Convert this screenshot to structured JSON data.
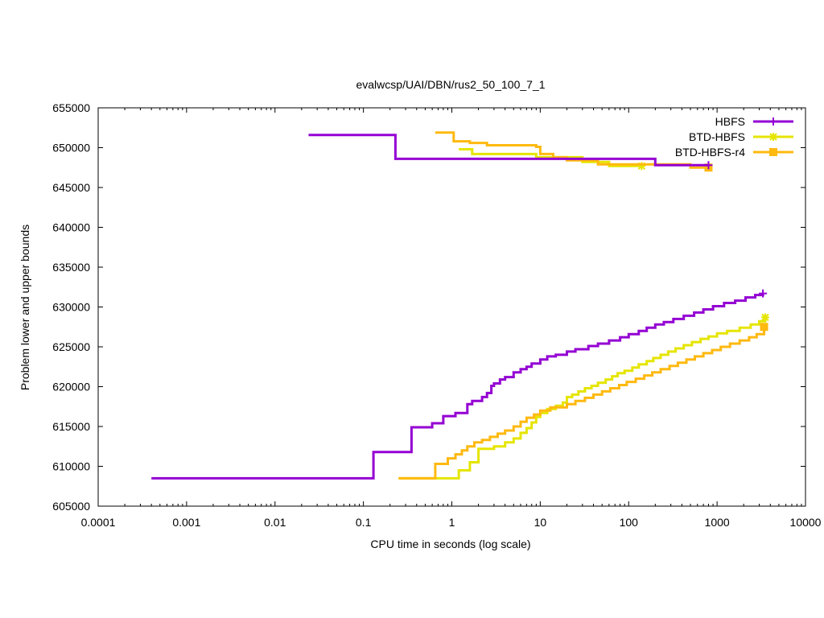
{
  "chart_data": {
    "type": "line",
    "title": "evalwcsp/UAI/DBN/rus2_50_100_7_1",
    "xlabel": "CPU time in seconds (log scale)",
    "ylabel": "Problem lower and upper bounds",
    "x_scale": "log",
    "xlim": [
      0.0001,
      10000
    ],
    "ylim": [
      605000,
      655000
    ],
    "x_ticks": [
      {
        "value": 0.0001,
        "label": "0.0001"
      },
      {
        "value": 0.001,
        "label": "0.001"
      },
      {
        "value": 0.01,
        "label": "0.01"
      },
      {
        "value": 0.1,
        "label": "0.1"
      },
      {
        "value": 1,
        "label": "1"
      },
      {
        "value": 10,
        "label": "10"
      },
      {
        "value": 100,
        "label": "100"
      },
      {
        "value": 1000,
        "label": "1000"
      },
      {
        "value": 10000,
        "label": "10000"
      }
    ],
    "y_ticks": [
      {
        "value": 605000,
        "label": "605000"
      },
      {
        "value": 610000,
        "label": "610000"
      },
      {
        "value": 615000,
        "label": "615000"
      },
      {
        "value": 620000,
        "label": "620000"
      },
      {
        "value": 625000,
        "label": "625000"
      },
      {
        "value": 630000,
        "label": "630000"
      },
      {
        "value": 635000,
        "label": "635000"
      },
      {
        "value": 640000,
        "label": "640000"
      },
      {
        "value": 645000,
        "label": "645000"
      },
      {
        "value": 650000,
        "label": "650000"
      },
      {
        "value": 655000,
        "label": "655000"
      }
    ],
    "grid": false,
    "legend_position": "top-right",
    "series": [
      {
        "name": "HBFS",
        "color": "#9400d3",
        "marker": "plus",
        "upper": [
          [
            0.024,
            651600
          ],
          [
            0.23,
            651600
          ],
          [
            0.23,
            648600
          ],
          [
            200,
            648600
          ],
          [
            200,
            647800
          ],
          [
            800,
            647800
          ]
        ],
        "lower": [
          [
            0.0004,
            608500
          ],
          [
            0.13,
            608500
          ],
          [
            0.13,
            611800
          ],
          [
            0.35,
            611800
          ],
          [
            0.35,
            614900
          ],
          [
            0.6,
            614900
          ],
          [
            0.6,
            615400
          ],
          [
            0.8,
            615400
          ],
          [
            0.8,
            616300
          ],
          [
            1.1,
            616300
          ],
          [
            1.1,
            616700
          ],
          [
            1.5,
            616700
          ],
          [
            1.5,
            617800
          ],
          [
            1.7,
            617800
          ],
          [
            1.7,
            618200
          ],
          [
            2.2,
            618200
          ],
          [
            2.2,
            618700
          ],
          [
            2.5,
            618700
          ],
          [
            2.5,
            619200
          ],
          [
            2.8,
            619200
          ],
          [
            2.8,
            620100
          ],
          [
            3,
            620100
          ],
          [
            3,
            620400
          ],
          [
            3.5,
            620400
          ],
          [
            3.5,
            620900
          ],
          [
            4,
            620900
          ],
          [
            4,
            621200
          ],
          [
            5,
            621200
          ],
          [
            5,
            621800
          ],
          [
            6,
            621800
          ],
          [
            6,
            622200
          ],
          [
            7,
            622200
          ],
          [
            7,
            622500
          ],
          [
            8,
            622500
          ],
          [
            8,
            622900
          ],
          [
            10,
            622900
          ],
          [
            10,
            623400
          ],
          [
            12,
            623400
          ],
          [
            12,
            623800
          ],
          [
            15,
            623800
          ],
          [
            15,
            624000
          ],
          [
            20,
            624000
          ],
          [
            20,
            624400
          ],
          [
            25,
            624400
          ],
          [
            25,
            624700
          ],
          [
            35,
            624700
          ],
          [
            35,
            625100
          ],
          [
            45,
            625100
          ],
          [
            45,
            625400
          ],
          [
            60,
            625400
          ],
          [
            60,
            625800
          ],
          [
            80,
            625800
          ],
          [
            80,
            626200
          ],
          [
            100,
            626200
          ],
          [
            100,
            626600
          ],
          [
            130,
            626600
          ],
          [
            130,
            627000
          ],
          [
            160,
            627000
          ],
          [
            160,
            627400
          ],
          [
            200,
            627400
          ],
          [
            200,
            627800
          ],
          [
            250,
            627800
          ],
          [
            250,
            628100
          ],
          [
            320,
            628100
          ],
          [
            320,
            628500
          ],
          [
            420,
            628500
          ],
          [
            420,
            628900
          ],
          [
            550,
            628900
          ],
          [
            550,
            629300
          ],
          [
            700,
            629300
          ],
          [
            700,
            629700
          ],
          [
            900,
            629700
          ],
          [
            900,
            630100
          ],
          [
            1200,
            630100
          ],
          [
            1200,
            630500
          ],
          [
            1600,
            630500
          ],
          [
            1600,
            630800
          ],
          [
            2100,
            630800
          ],
          [
            2100,
            631200
          ],
          [
            2700,
            631200
          ],
          [
            2700,
            631500
          ],
          [
            3300,
            631500
          ],
          [
            3300,
            631700
          ]
        ]
      },
      {
        "name": "BTD-HBFS",
        "color": "#e5e500",
        "marker": "star",
        "upper": [
          [
            1.2,
            649800
          ],
          [
            1.7,
            649800
          ],
          [
            1.7,
            649200
          ],
          [
            9,
            649200
          ],
          [
            9,
            648800
          ],
          [
            30,
            648800
          ],
          [
            30,
            648200
          ],
          [
            60,
            648200
          ],
          [
            60,
            647700
          ],
          [
            140,
            647700
          ]
        ],
        "lower": [
          [
            0.25,
            608500
          ],
          [
            1.2,
            608500
          ],
          [
            1.2,
            609500
          ],
          [
            1.6,
            609500
          ],
          [
            1.6,
            610500
          ],
          [
            2,
            610500
          ],
          [
            2,
            612200
          ],
          [
            3,
            612200
          ],
          [
            3,
            612500
          ],
          [
            4,
            612500
          ],
          [
            4,
            613000
          ],
          [
            5,
            613000
          ],
          [
            5,
            613500
          ],
          [
            6,
            613500
          ],
          [
            6,
            614200
          ],
          [
            7,
            614200
          ],
          [
            7,
            614800
          ],
          [
            8,
            614800
          ],
          [
            8,
            615500
          ],
          [
            9,
            615500
          ],
          [
            9,
            616200
          ],
          [
            10,
            616200
          ],
          [
            10,
            616700
          ],
          [
            12,
            616700
          ],
          [
            12,
            617200
          ],
          [
            15,
            617200
          ],
          [
            15,
            617600
          ],
          [
            18,
            617600
          ],
          [
            18,
            618000
          ],
          [
            20,
            618000
          ],
          [
            20,
            618700
          ],
          [
            23,
            618700
          ],
          [
            23,
            619000
          ],
          [
            27,
            619000
          ],
          [
            27,
            619400
          ],
          [
            32,
            619400
          ],
          [
            32,
            619800
          ],
          [
            38,
            619800
          ],
          [
            38,
            620100
          ],
          [
            45,
            620100
          ],
          [
            45,
            620500
          ],
          [
            55,
            620500
          ],
          [
            55,
            620900
          ],
          [
            65,
            620900
          ],
          [
            65,
            621300
          ],
          [
            75,
            621300
          ],
          [
            75,
            621700
          ],
          [
            90,
            621700
          ],
          [
            90,
            622000
          ],
          [
            110,
            622000
          ],
          [
            110,
            622400
          ],
          [
            130,
            622400
          ],
          [
            130,
            622800
          ],
          [
            160,
            622800
          ],
          [
            160,
            623200
          ],
          [
            190,
            623200
          ],
          [
            190,
            623600
          ],
          [
            230,
            623600
          ],
          [
            230,
            624000
          ],
          [
            280,
            624000
          ],
          [
            280,
            624400
          ],
          [
            340,
            624400
          ],
          [
            340,
            624800
          ],
          [
            420,
            624800
          ],
          [
            420,
            625200
          ],
          [
            520,
            625200
          ],
          [
            520,
            625600
          ],
          [
            650,
            625600
          ],
          [
            650,
            626000
          ],
          [
            800,
            626000
          ],
          [
            800,
            626300
          ],
          [
            1000,
            626300
          ],
          [
            1000,
            626700
          ],
          [
            1300,
            626700
          ],
          [
            1300,
            627000
          ],
          [
            1800,
            627000
          ],
          [
            1800,
            627400
          ],
          [
            2400,
            627400
          ],
          [
            2400,
            627800
          ],
          [
            3000,
            627800
          ],
          [
            3000,
            628200
          ],
          [
            3500,
            628200
          ],
          [
            3500,
            628700
          ]
        ]
      },
      {
        "name": "BTD-HBFS-r4",
        "color": "#ffb90f",
        "marker": "square",
        "upper": [
          [
            0.65,
            651900
          ],
          [
            1.05,
            651900
          ],
          [
            1.05,
            650800
          ],
          [
            1.6,
            650800
          ],
          [
            1.6,
            650600
          ],
          [
            2.5,
            650600
          ],
          [
            2.5,
            650300
          ],
          [
            9,
            650300
          ],
          [
            9,
            650100
          ],
          [
            10,
            650100
          ],
          [
            10,
            649200
          ],
          [
            14,
            649200
          ],
          [
            14,
            648800
          ],
          [
            20,
            648800
          ],
          [
            20,
            648400
          ],
          [
            45,
            648400
          ],
          [
            45,
            647900
          ],
          [
            500,
            647900
          ],
          [
            500,
            647500
          ],
          [
            800,
            647500
          ]
        ],
        "lower": [
          [
            0.25,
            608500
          ],
          [
            0.65,
            608500
          ],
          [
            0.65,
            610300
          ],
          [
            0.9,
            610300
          ],
          [
            0.9,
            611000
          ],
          [
            1.1,
            611000
          ],
          [
            1.1,
            611500
          ],
          [
            1.3,
            611500
          ],
          [
            1.3,
            612000
          ],
          [
            1.5,
            612000
          ],
          [
            1.5,
            612500
          ],
          [
            1.8,
            612500
          ],
          [
            1.8,
            613000
          ],
          [
            2.2,
            613000
          ],
          [
            2.2,
            613300
          ],
          [
            2.7,
            613300
          ],
          [
            2.7,
            613700
          ],
          [
            3.3,
            613700
          ],
          [
            3.3,
            614100
          ],
          [
            4,
            614100
          ],
          [
            4,
            614500
          ],
          [
            5,
            614500
          ],
          [
            5,
            615000
          ],
          [
            6,
            615000
          ],
          [
            6,
            615600
          ],
          [
            7,
            615600
          ],
          [
            7,
            616100
          ],
          [
            8.5,
            616100
          ],
          [
            8.5,
            616500
          ],
          [
            10,
            616500
          ],
          [
            10,
            617000
          ],
          [
            13,
            617000
          ],
          [
            13,
            617400
          ],
          [
            20,
            617400
          ],
          [
            20,
            617800
          ],
          [
            25,
            617800
          ],
          [
            25,
            618200
          ],
          [
            32,
            618200
          ],
          [
            32,
            618600
          ],
          [
            40,
            618600
          ],
          [
            40,
            619000
          ],
          [
            50,
            619000
          ],
          [
            50,
            619400
          ],
          [
            62,
            619400
          ],
          [
            62,
            619800
          ],
          [
            78,
            619800
          ],
          [
            78,
            620200
          ],
          [
            95,
            620200
          ],
          [
            95,
            620600
          ],
          [
            120,
            620600
          ],
          [
            120,
            621000
          ],
          [
            150,
            621000
          ],
          [
            150,
            621400
          ],
          [
            185,
            621400
          ],
          [
            185,
            621800
          ],
          [
            230,
            621800
          ],
          [
            230,
            622200
          ],
          [
            290,
            622200
          ],
          [
            290,
            622600
          ],
          [
            360,
            622600
          ],
          [
            360,
            623000
          ],
          [
            450,
            623000
          ],
          [
            450,
            623400
          ],
          [
            560,
            623400
          ],
          [
            560,
            623800
          ],
          [
            700,
            623800
          ],
          [
            700,
            624200
          ],
          [
            880,
            624200
          ],
          [
            880,
            624600
          ],
          [
            1100,
            624600
          ],
          [
            1100,
            625000
          ],
          [
            1400,
            625000
          ],
          [
            1400,
            625400
          ],
          [
            1800,
            625400
          ],
          [
            1800,
            625800
          ],
          [
            2300,
            625800
          ],
          [
            2300,
            626200
          ],
          [
            2800,
            626200
          ],
          [
            2800,
            626600
          ],
          [
            3400,
            626600
          ],
          [
            3400,
            627500
          ]
        ]
      }
    ]
  }
}
